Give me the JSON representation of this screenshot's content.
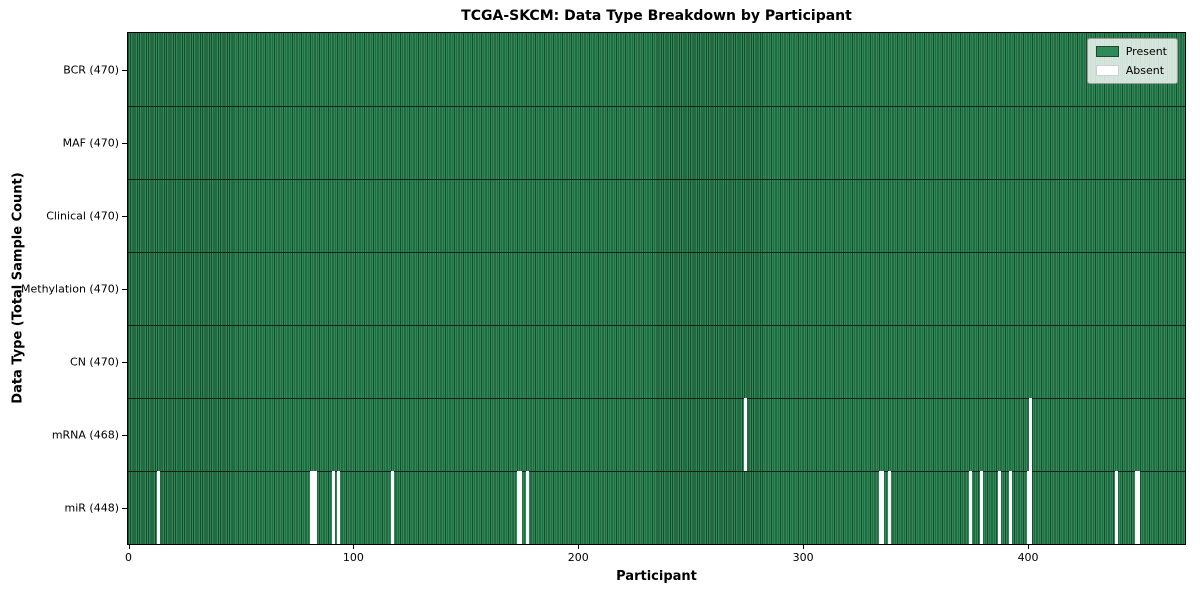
{
  "chart_data": {
    "type": "heatmap",
    "title": "TCGA-SKCM: Data Type Breakdown by Participant",
    "xlabel": "Participant",
    "ylabel": "Data Type (Total Sample Count)",
    "x_range": [
      0,
      470
    ],
    "n_participants": 470,
    "x_ticks": [
      0,
      100,
      200,
      300,
      400
    ],
    "grid": false,
    "legend_position": "upper right",
    "legend": [
      {
        "label": "Present",
        "color": "#2e8b57"
      },
      {
        "label": "Absent",
        "color": "#ffffff"
      }
    ],
    "rows": [
      {
        "label": "BCR (470)",
        "data_type": "BCR",
        "present_count": 470,
        "absent_participants": []
      },
      {
        "label": "MAF (470)",
        "data_type": "MAF",
        "present_count": 470,
        "absent_participants": []
      },
      {
        "label": "Clinical (470)",
        "data_type": "Clinical",
        "present_count": 470,
        "absent_participants": []
      },
      {
        "label": "Methylation (470)",
        "data_type": "Methylation",
        "present_count": 470,
        "absent_participants": []
      },
      {
        "label": "CN (470)",
        "data_type": "CN",
        "present_count": 470,
        "absent_participants": []
      },
      {
        "label": "mRNA (468)",
        "data_type": "mRNA",
        "present_count": 468,
        "absent_participants": [
          274,
          401
        ]
      },
      {
        "label": "miR (448)",
        "data_type": "miR",
        "present_count": 448,
        "absent_participants": [
          13,
          81,
          82,
          83,
          91,
          93,
          117,
          173,
          174,
          177,
          334,
          335,
          338,
          374,
          379,
          387,
          392,
          400,
          401,
          439,
          448,
          449
        ]
      }
    ],
    "colors": {
      "present": "#2e8b57",
      "cell_edge": "#1b4a2e",
      "absent": "#ffffff",
      "row_divider": "#10231a",
      "axis": "#000000",
      "legend_bg": "#e4e8e1",
      "legend_border": "#9a9a9a"
    }
  }
}
